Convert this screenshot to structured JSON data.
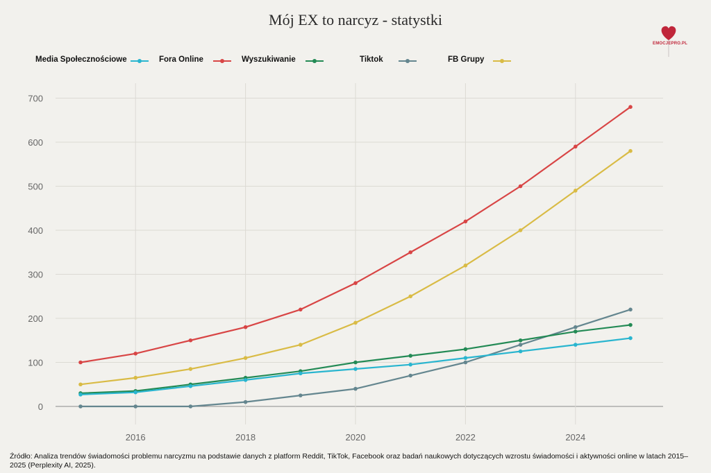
{
  "title": "Mój EX to narcyz - statystki",
  "logo": {
    "text": "EMOCJEPRO.PL",
    "color": "#c0263a"
  },
  "legend": [
    {
      "label": "Media Społecznościowe",
      "color": "#29b5cf"
    },
    {
      "label": "Fora Online",
      "color": "#d84545"
    },
    {
      "label": "Wyszukiwanie",
      "color": "#238a55"
    },
    {
      "label": "Tiktok",
      "color": "#64868f"
    },
    {
      "label": "FB Grupy",
      "color": "#d9bb45"
    }
  ],
  "source": "Źródło: Analiza trendów świadomości problemu narcyzmu na podstawie danych z platform Reddit, TikTok, Facebook oraz badań naukowych dotyczących wzrostu świadomości i aktywności online w latach 2015–2025 (Perplexity AI, 2025).",
  "chart_data": {
    "type": "line",
    "x": [
      2015,
      2016,
      2017,
      2018,
      2019,
      2020,
      2021,
      2022,
      2023,
      2024,
      2025
    ],
    "xticks": [
      2016,
      2018,
      2020,
      2022,
      2024
    ],
    "yticks": [
      0,
      100,
      200,
      300,
      400,
      500,
      600,
      700
    ],
    "xlim": [
      2014.4,
      2025.6
    ],
    "ylim": [
      0,
      700
    ],
    "grid": true,
    "series": [
      {
        "color": "#d84545",
        "values": [
          100,
          120,
          150,
          180,
          220,
          280,
          350,
          420,
          500,
          590,
          680
        ]
      },
      {
        "color": "#d9bb45",
        "values": [
          50,
          65,
          85,
          110,
          140,
          190,
          250,
          320,
          400,
          490,
          580
        ]
      },
      {
        "color": "#64868f",
        "values": [
          0,
          0,
          0,
          10,
          25,
          40,
          70,
          100,
          140,
          180,
          220
        ]
      },
      {
        "color": "#238a55",
        "values": [
          30,
          35,
          50,
          65,
          80,
          100,
          115,
          130,
          150,
          170,
          185
        ]
      },
      {
        "color": "#29b5cf",
        "values": [
          27,
          32,
          46,
          60,
          75,
          85,
          95,
          110,
          125,
          140,
          155
        ]
      }
    ]
  }
}
